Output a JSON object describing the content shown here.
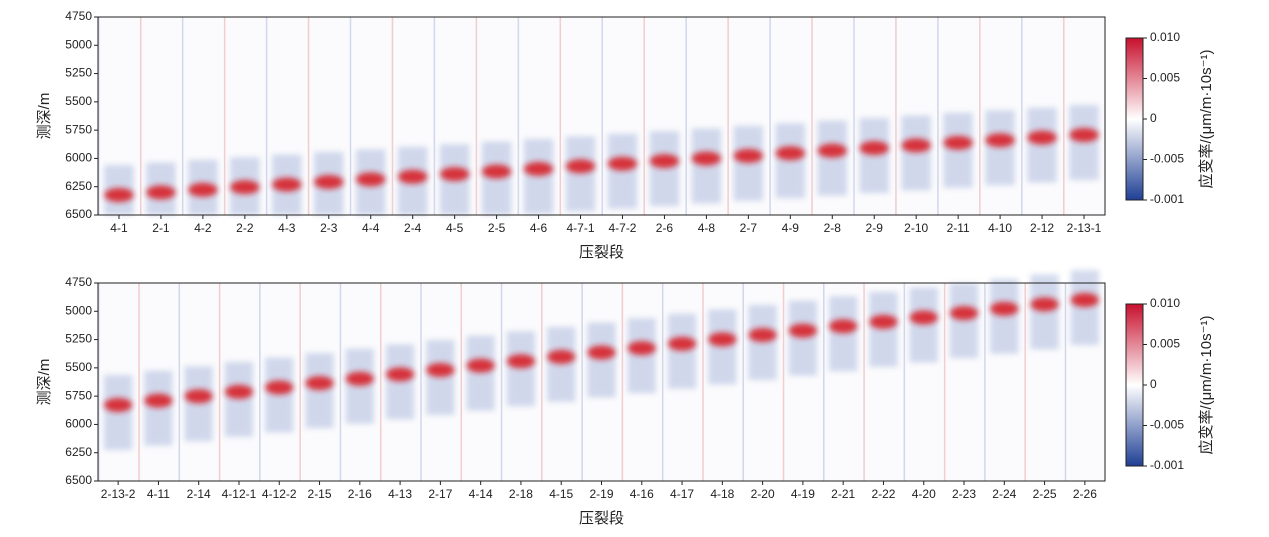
{
  "chart_data": [
    {
      "type": "heatmap",
      "ylabel": "测深/m",
      "xlabel": "压裂段",
      "categories": [
        "4-1",
        "2-1",
        "4-2",
        "2-2",
        "4-3",
        "2-3",
        "4-4",
        "2-4",
        "4-5",
        "2-5",
        "4-6",
        "4-7-1",
        "4-7-2",
        "2-6",
        "4-8",
        "2-7",
        "4-9",
        "2-8",
        "2-9",
        "2-10",
        "2-11",
        "4-10",
        "2-12",
        "2-13-1"
      ],
      "ylim": [
        4750,
        6500
      ],
      "yticks": [
        4750,
        5000,
        5250,
        5500,
        5750,
        6000,
        6250,
        6500
      ],
      "colorbar": {
        "label": "应变率/(μm/m·10s⁻¹)",
        "colors": [
          "#c8102e",
          "#ffffff",
          "#1f3f95"
        ],
        "ticks": [
          {
            "value": 0.01,
            "label": "0.010"
          },
          0.005,
          0,
          -0.005,
          -0.001
        ]
      }
    },
    {
      "type": "heatmap",
      "ylabel": "测深/m",
      "xlabel": "压裂段",
      "categories": [
        "2-13-2",
        "4-11",
        "2-14",
        "4-12-1",
        "4-12-2",
        "2-15",
        "2-16",
        "4-13",
        "2-17",
        "4-14",
        "2-18",
        "4-15",
        "2-19",
        "4-16",
        "4-17",
        "4-18",
        "2-20",
        "4-19",
        "2-21",
        "2-22",
        "4-20",
        "2-23",
        "2-24",
        "2-25",
        "2-26"
      ],
      "ylim": [
        4750,
        6500
      ],
      "yticks": [
        4750,
        5000,
        5250,
        5500,
        5750,
        6000,
        6250,
        6500
      ],
      "colorbar": {
        "label": "应变率/(μm/m·10s⁻¹)",
        "colors": [
          "#c8102e",
          "#ffffff",
          "#1f3f95"
        ],
        "ticks": [
          {
            "value": 0.01,
            "label": "0.010"
          },
          0.005,
          0,
          -0.005,
          -0.001
        ]
      }
    }
  ]
}
